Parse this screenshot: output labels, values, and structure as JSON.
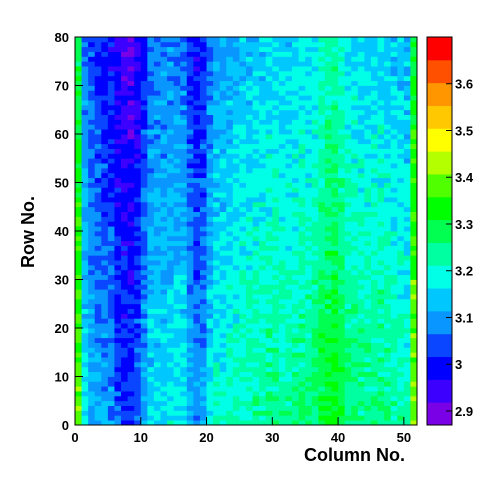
{
  "chart_data": {
    "type": "heatmap",
    "title": "",
    "xlabel": "Column No.",
    "ylabel": "Row No.",
    "xlim": [
      0,
      52
    ],
    "ylim": [
      0,
      80
    ],
    "x_ticks": [
      0,
      10,
      20,
      30,
      40,
      50
    ],
    "y_ticks": [
      0,
      10,
      20,
      30,
      40,
      50,
      60,
      70,
      80
    ],
    "n_columns": 52,
    "n_rows": 80,
    "grid": false,
    "colorbar": {
      "range": [
        2.87,
        3.7
      ],
      "ticks": [
        2.9,
        3,
        3.1,
        3.2,
        3.3,
        3.4,
        3.5,
        3.6
      ],
      "colors": [
        "#7a00e6",
        "#3c00ff",
        "#0000ff",
        "#0a46ff",
        "#0a96ff",
        "#00c8ff",
        "#00ffe6",
        "#00ffa0",
        "#00ff50",
        "#00ff00",
        "#50ff00",
        "#b4ff00",
        "#ffff00",
        "#ffc800",
        "#ff9600",
        "#ff5000",
        "#ff0000"
      ]
    },
    "column_profile": [
      [
        0,
        3.34
      ],
      [
        1,
        3.12
      ],
      [
        2,
        3.08
      ],
      [
        3,
        3.06
      ],
      [
        4,
        3.05
      ],
      [
        5,
        3.04
      ],
      [
        6,
        3.0
      ],
      [
        7,
        2.98
      ],
      [
        8,
        2.98
      ],
      [
        9,
        3.01
      ],
      [
        10,
        3.06
      ],
      [
        11,
        3.11
      ],
      [
        12,
        3.12
      ],
      [
        13,
        3.12
      ],
      [
        14,
        3.13
      ],
      [
        15,
        3.13
      ],
      [
        16,
        3.12
      ],
      [
        17,
        3.07
      ],
      [
        18,
        3.04
      ],
      [
        19,
        3.06
      ],
      [
        20,
        3.12
      ],
      [
        21,
        3.15
      ],
      [
        22,
        3.15
      ],
      [
        23,
        3.16
      ],
      [
        24,
        3.17
      ],
      [
        25,
        3.18
      ],
      [
        26,
        3.18
      ],
      [
        27,
        3.19
      ],
      [
        28,
        3.19
      ],
      [
        29,
        3.2
      ],
      [
        30,
        3.2
      ],
      [
        31,
        3.19
      ],
      [
        32,
        3.19
      ],
      [
        33,
        3.2
      ],
      [
        34,
        3.21
      ],
      [
        35,
        3.21
      ],
      [
        36,
        3.22
      ],
      [
        37,
        3.25
      ],
      [
        38,
        3.27
      ],
      [
        39,
        3.28
      ],
      [
        40,
        3.25
      ],
      [
        41,
        3.22
      ],
      [
        42,
        3.21
      ],
      [
        43,
        3.2
      ],
      [
        44,
        3.2
      ],
      [
        45,
        3.2
      ],
      [
        46,
        3.21
      ],
      [
        47,
        3.2
      ],
      [
        48,
        3.19
      ],
      [
        49,
        3.18
      ],
      [
        50,
        3.17
      ],
      [
        51,
        3.36
      ]
    ],
    "row_gradient": {
      "bottom": 0.05,
      "top": -0.05
    },
    "noise": 0.04
  }
}
